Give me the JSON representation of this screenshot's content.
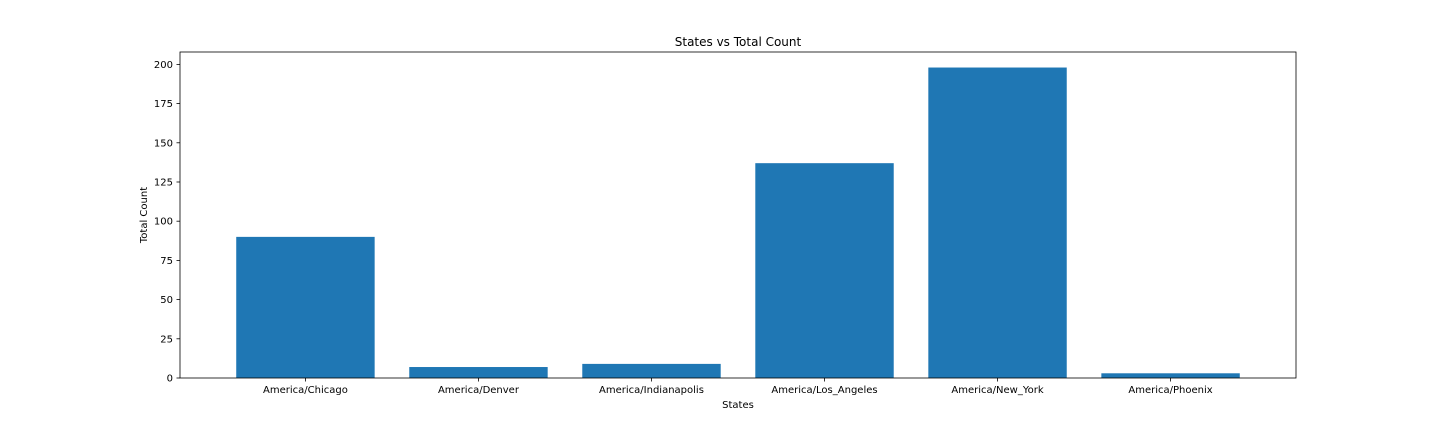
{
  "chart_data": {
    "type": "bar",
    "title": "States vs Total Count",
    "xlabel": "States",
    "ylabel": "Total Count",
    "categories": [
      "America/Chicago",
      "America/Denver",
      "America/Indianapolis",
      "America/Los_Angeles",
      "America/New_York",
      "America/Phoenix"
    ],
    "values": [
      90,
      7,
      9,
      137,
      198,
      3
    ],
    "ylim": [
      0,
      207.9
    ],
    "yticks": [
      0,
      25,
      50,
      75,
      100,
      125,
      150,
      175,
      200
    ],
    "grid": false,
    "bar_color": "#1f77b4"
  }
}
